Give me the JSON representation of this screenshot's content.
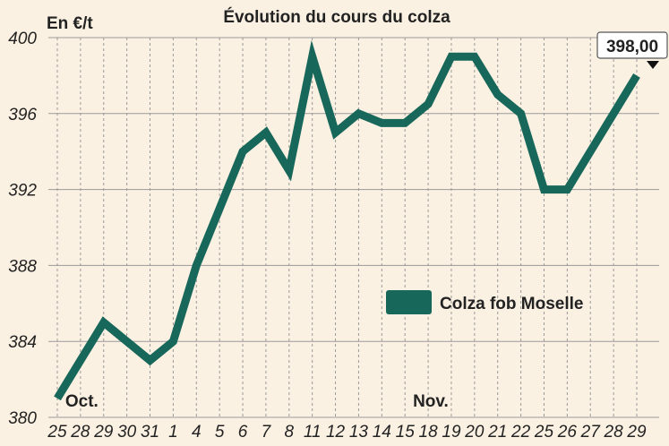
{
  "chart_data": {
    "type": "line",
    "title": "Évolution du cours du colza",
    "ylabel": "En €/t",
    "ylim": [
      380,
      400
    ],
    "yticks": [
      380,
      384,
      388,
      392,
      396,
      400
    ],
    "categories": [
      "25",
      "28",
      "29",
      "30",
      "31",
      "1",
      "4",
      "5",
      "6",
      "7",
      "8",
      "11",
      "12",
      "13",
      "14",
      "15",
      "18",
      "19",
      "20",
      "21",
      "22",
      "25",
      "26",
      "27",
      "28",
      "29"
    ],
    "month_labels": [
      {
        "label": "Oct.",
        "at_index": 1
      },
      {
        "label": "Nov.",
        "at_index": 16
      }
    ],
    "series": [
      {
        "name": "Colza fob Moselle",
        "color": "#17675a",
        "values": [
          381,
          383,
          385,
          384,
          383,
          384,
          388,
          391,
          394,
          395,
          393,
          399,
          395,
          396,
          395.5,
          395.5,
          396.5,
          399,
          399,
          397,
          396,
          392,
          392,
          394,
          396,
          398
        ]
      }
    ],
    "annotation": {
      "text": "398,00",
      "at_index": 25
    },
    "legend_position": "right-middle",
    "grid": {
      "horizontal": "solid",
      "vertical": "dashed"
    },
    "colors": {
      "background": "#fbf1e2",
      "grid": "#999999",
      "line": "#17675a"
    }
  }
}
